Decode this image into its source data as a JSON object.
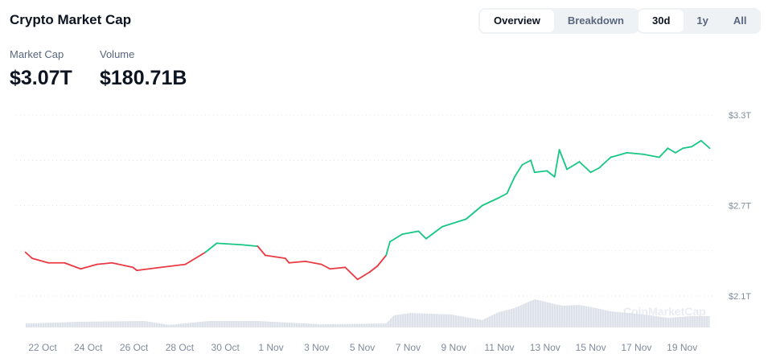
{
  "header": {
    "title": "Crypto Market Cap"
  },
  "view_tabs": [
    {
      "label": "Overview",
      "active": true
    },
    {
      "label": "Breakdown",
      "active": false
    }
  ],
  "range_tabs": [
    {
      "label": "30d",
      "active": true
    },
    {
      "label": "1y",
      "active": false
    },
    {
      "label": "All",
      "active": false
    }
  ],
  "stats": {
    "market_cap_label": "Market Cap",
    "market_cap_value": "$3.07T",
    "volume_label": "Volume",
    "volume_value": "$180.71B"
  },
  "watermark": "CoinMarketCap",
  "colors": {
    "up": "#16c784",
    "down": "#ea3943",
    "volume": "#d5d9e3",
    "grid": "#e2e5ea"
  },
  "chart_data": {
    "type": "line",
    "yunit": "USD trillions",
    "ylim": [
      2.1,
      3.3
    ],
    "yticks": [
      {
        "value": 3.3,
        "label": "$3.3T"
      },
      {
        "value": 2.7,
        "label": "$2.7T"
      },
      {
        "value": 2.1,
        "label": "$2.1T"
      }
    ],
    "gridlines": [
      3.3,
      3.0,
      2.7,
      2.4,
      2.1
    ],
    "xticks": [
      {
        "date": "2024-10-22",
        "label": "22 Oct"
      },
      {
        "date": "2024-10-24",
        "label": "24 Oct"
      },
      {
        "date": "2024-10-26",
        "label": "26 Oct"
      },
      {
        "date": "2024-10-28",
        "label": "28 Oct"
      },
      {
        "date": "2024-10-30",
        "label": "30 Oct"
      },
      {
        "date": "2024-11-01",
        "label": "1 Nov"
      },
      {
        "date": "2024-11-03",
        "label": "3 Nov"
      },
      {
        "date": "2024-11-05",
        "label": "5 Nov"
      },
      {
        "date": "2024-11-07",
        "label": "7 Nov"
      },
      {
        "date": "2024-11-09",
        "label": "9 Nov"
      },
      {
        "date": "2024-11-11",
        "label": "11 Nov"
      },
      {
        "date": "2024-11-13",
        "label": "13 Nov"
      },
      {
        "date": "2024-11-15",
        "label": "15 Nov"
      },
      {
        "date": "2024-11-17",
        "label": "17 Nov"
      },
      {
        "date": "2024-11-19",
        "label": "19 Nov"
      }
    ],
    "market_cap": [
      [
        "2024-10-21T06:00",
        2.39
      ],
      [
        "2024-10-21T13:00",
        2.35
      ],
      [
        "2024-10-22T06:00",
        2.32
      ],
      [
        "2024-10-22T23:00",
        2.32
      ],
      [
        "2024-10-23T16:00",
        2.28
      ],
      [
        "2024-10-24T09:00",
        2.31
      ],
      [
        "2024-10-25T01:00",
        2.32
      ],
      [
        "2024-10-25T23:00",
        2.29
      ],
      [
        "2024-10-26T03:00",
        2.27
      ],
      [
        "2024-10-27T04:00",
        2.29
      ],
      [
        "2024-10-28T06:00",
        2.31
      ],
      [
        "2024-10-29T03:00",
        2.39
      ],
      [
        "2024-10-29T15:00",
        2.45
      ],
      [
        "2024-10-30T17:00",
        2.44
      ],
      [
        "2024-10-31T10:00",
        2.43
      ],
      [
        "2024-10-31T18:00",
        2.37
      ],
      [
        "2024-11-01T15:00",
        2.35
      ],
      [
        "2024-11-01T19:00",
        2.32
      ],
      [
        "2024-11-02T12:00",
        2.33
      ],
      [
        "2024-11-03T05:00",
        2.31
      ],
      [
        "2024-11-03T14:00",
        2.28
      ],
      [
        "2024-11-04T06:00",
        2.29
      ],
      [
        "2024-11-04T19:00",
        2.21
      ],
      [
        "2024-11-05T08:00",
        2.26
      ],
      [
        "2024-11-05T16:00",
        2.3
      ],
      [
        "2024-11-06T01:00",
        2.37
      ],
      [
        "2024-11-06T05:00",
        2.46
      ],
      [
        "2024-11-06T18:00",
        2.51
      ],
      [
        "2024-11-07T11:00",
        2.53
      ],
      [
        "2024-11-07T19:00",
        2.48
      ],
      [
        "2024-11-08T12:00",
        2.56
      ],
      [
        "2024-11-09T13:00",
        2.61
      ],
      [
        "2024-11-10T06:00",
        2.7
      ],
      [
        "2024-11-10T23:00",
        2.75
      ],
      [
        "2024-11-11T08:00",
        2.78
      ],
      [
        "2024-11-11T16:00",
        2.89
      ],
      [
        "2024-11-12T00:00",
        2.97
      ],
      [
        "2024-11-12T09:00",
        3.0
      ],
      [
        "2024-11-12T13:00",
        2.92
      ],
      [
        "2024-11-13T02:00",
        2.93
      ],
      [
        "2024-11-13T10:00",
        2.89
      ],
      [
        "2024-11-13T15:00",
        3.07
      ],
      [
        "2024-11-13T23:00",
        2.94
      ],
      [
        "2024-11-14T12:00",
        2.99
      ],
      [
        "2024-11-15T00:00",
        2.92
      ],
      [
        "2024-11-15T09:00",
        2.95
      ],
      [
        "2024-11-15T21:00",
        3.02
      ],
      [
        "2024-11-16T14:00",
        3.05
      ],
      [
        "2024-11-17T07:00",
        3.04
      ],
      [
        "2024-11-18T00:00",
        3.02
      ],
      [
        "2024-11-18T09:00",
        3.08
      ],
      [
        "2024-11-18T17:00",
        3.05
      ],
      [
        "2024-11-19T01:00",
        3.08
      ],
      [
        "2024-11-19T10:00",
        3.09
      ],
      [
        "2024-11-19T20:00",
        3.13
      ],
      [
        "2024-11-20T05:00",
        3.08
      ]
    ],
    "volume_relative": [
      [
        "2024-10-21T06:00",
        0.14
      ],
      [
        "2024-10-23T16:00",
        0.2
      ],
      [
        "2024-10-26T11:00",
        0.23
      ],
      [
        "2024-10-27T13:00",
        0.09
      ],
      [
        "2024-10-29T07:00",
        0.23
      ],
      [
        "2024-10-31T10:00",
        0.23
      ],
      [
        "2024-11-03T05:00",
        0.11
      ],
      [
        "2024-11-06T01:00",
        0.14
      ],
      [
        "2024-11-06T09:00",
        0.43
      ],
      [
        "2024-11-07T02:00",
        0.51
      ],
      [
        "2024-11-08T21:00",
        0.46
      ],
      [
        "2024-11-10T06:00",
        0.26
      ],
      [
        "2024-11-10T23:00",
        0.54
      ],
      [
        "2024-11-11T16:00",
        0.69
      ],
      [
        "2024-11-12T13:00",
        1.0
      ],
      [
        "2024-11-13T10:00",
        0.83
      ],
      [
        "2024-11-13T19:00",
        0.77
      ],
      [
        "2024-11-14T12:00",
        0.8
      ],
      [
        "2024-11-15T05:00",
        0.69
      ],
      [
        "2024-11-15T21:00",
        0.57
      ],
      [
        "2024-11-17T07:00",
        0.46
      ],
      [
        "2024-11-18T09:00",
        0.34
      ],
      [
        "2024-11-19T10:00",
        0.4
      ],
      [
        "2024-11-20T05:00",
        0.4
      ]
    ]
  }
}
